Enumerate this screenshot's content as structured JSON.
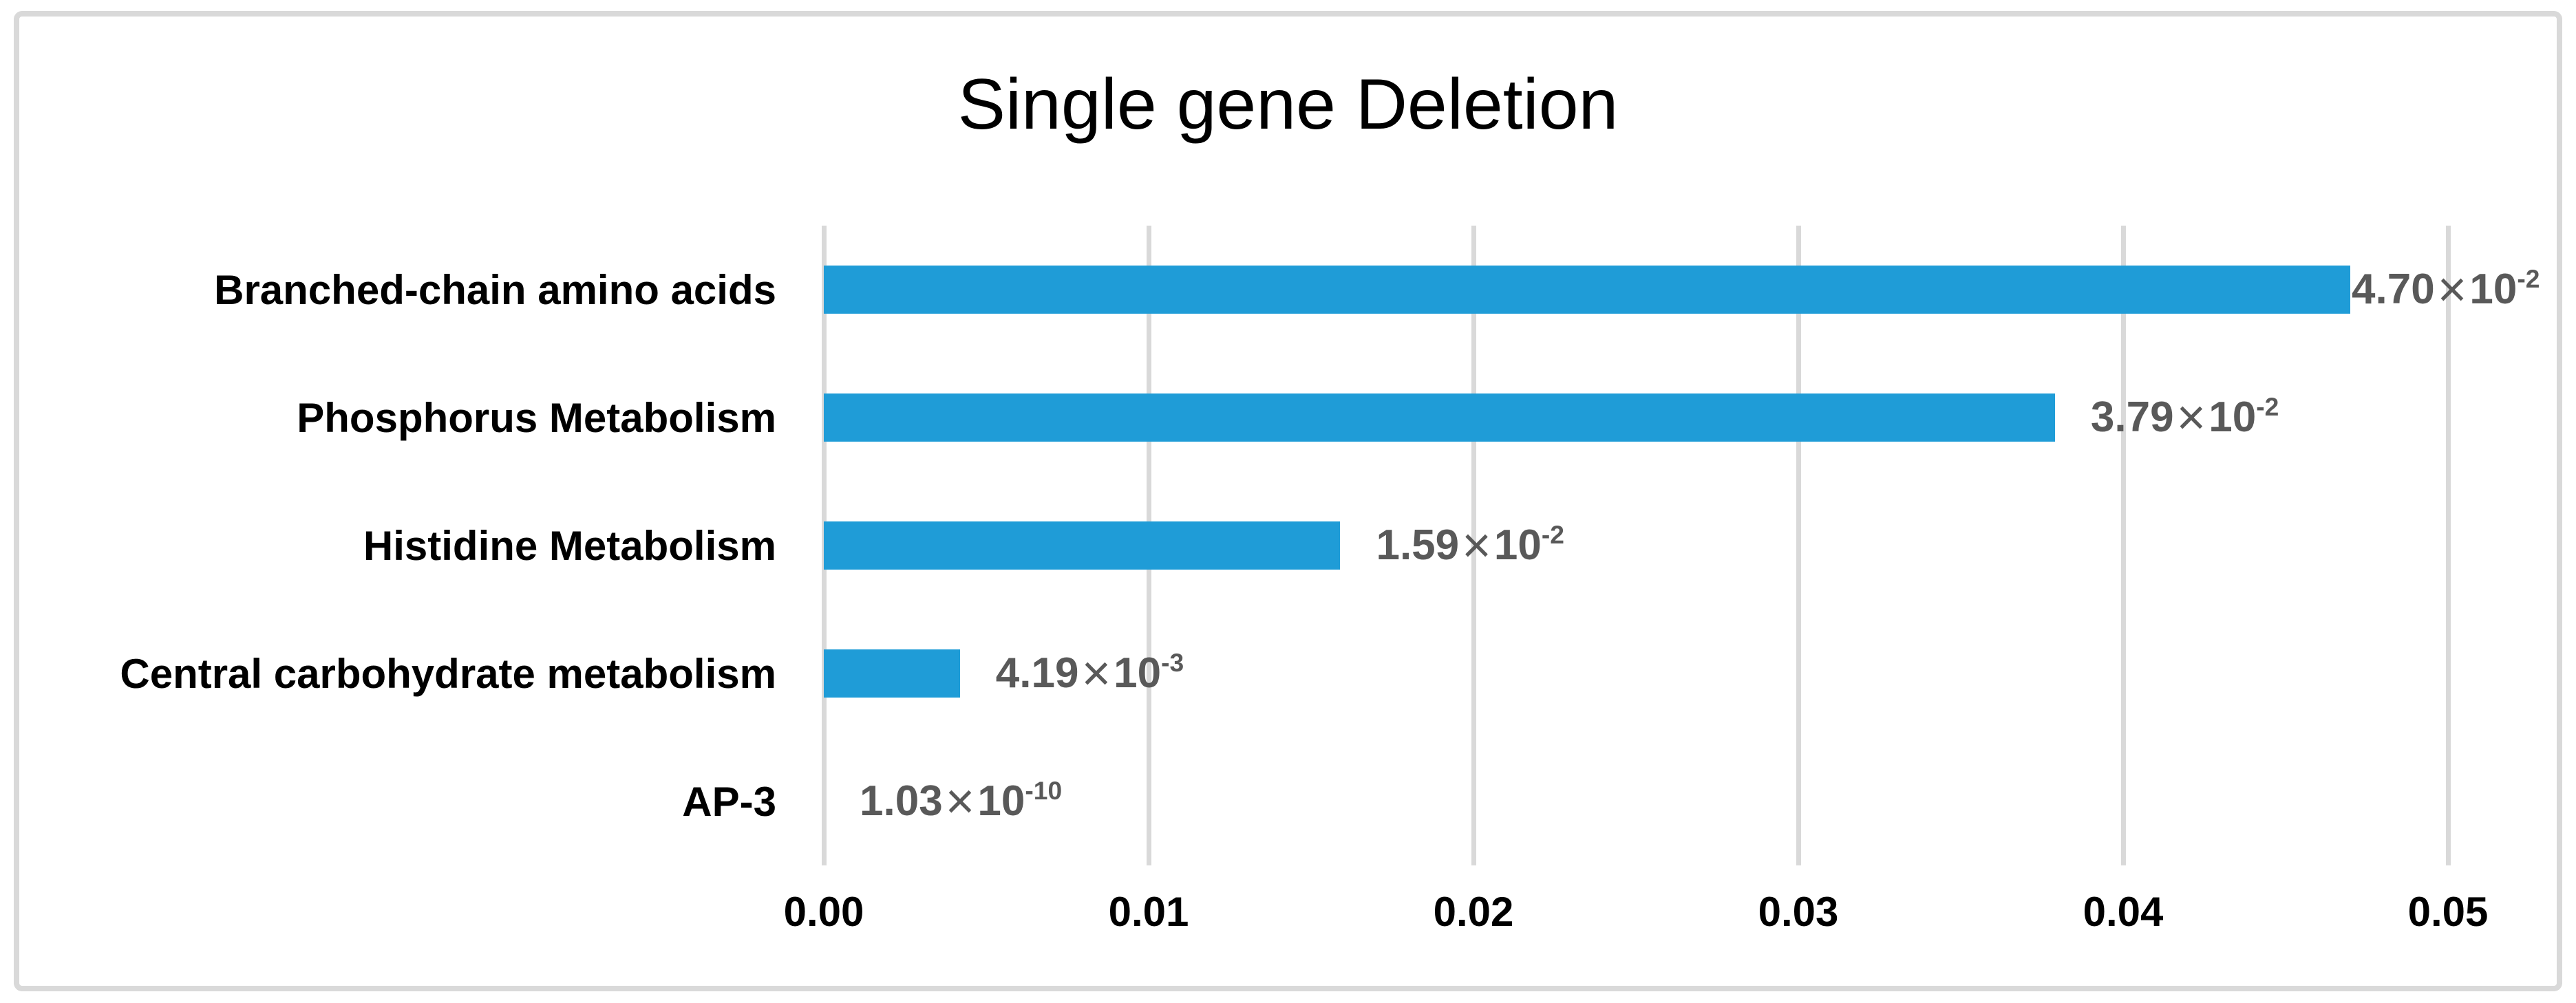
{
  "chart_data": {
    "type": "bar",
    "orientation": "horizontal",
    "title": "Single gene Deletion",
    "categories": [
      "Branched-chain amino acids",
      "Phosphorus Metabolism",
      "Histidine Metabolism",
      "Central carbohydrate metabolism",
      "AP-3"
    ],
    "values": [
      0.047,
      0.0379,
      0.0159,
      0.00419,
      1.03e-10
    ],
    "value_labels": [
      {
        "mantissa": "4.70",
        "base": "10",
        "exponent": "-2"
      },
      {
        "mantissa": "3.79",
        "base": "10",
        "exponent": "-2"
      },
      {
        "mantissa": "1.59",
        "base": "10",
        "exponent": "-2"
      },
      {
        "mantissa": "4.19",
        "base": "10",
        "exponent": "-3"
      },
      {
        "mantissa": "1.03",
        "base": "10",
        "exponent": "-10"
      }
    ],
    "multiplication_sign": "×",
    "x_ticks": [
      "0.00",
      "0.01",
      "0.02",
      "0.03",
      "0.04",
      "0.05"
    ],
    "xlim": [
      0,
      0.05
    ],
    "grid": true,
    "legend": false,
    "colors": {
      "bar": "#1f9cd7",
      "gridline": "#d9d9d9",
      "value_label": "#595959",
      "text": "#000000",
      "frame_border": "#d9d9d9",
      "background": "#ffffff"
    }
  }
}
